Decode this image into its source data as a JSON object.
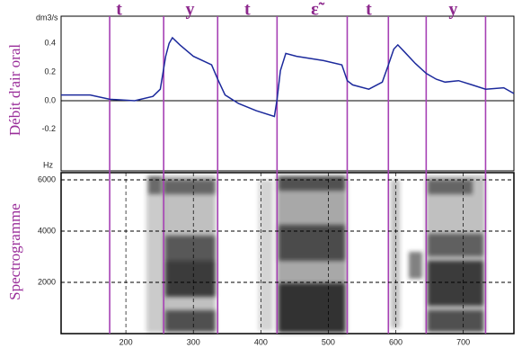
{
  "chart_data": [
    {
      "type": "line",
      "ylabel": "Débit d'air oral",
      "unit": "dm3/s",
      "phonemes": [
        {
          "label": "t",
          "x": 190
        },
        {
          "label": "y",
          "x": 295
        },
        {
          "label": "t",
          "x": 380
        },
        {
          "label": "ɛ̃",
          "x": 480
        },
        {
          "label": "t",
          "x": 560
        },
        {
          "label": "y",
          "x": 685
        }
      ],
      "boundaries": [
        176,
        256,
        336,
        424,
        528,
        589,
        645,
        733
      ],
      "xlim": [
        104,
        775
      ],
      "ylim": [
        -0.49,
        0.59
      ],
      "yticks": [
        0.4,
        0.2,
        {
          "value": 0,
          "label": "0.0"
        },
        -0.2
      ],
      "series": [
        {
          "color": "#1c2a9c",
          "x": [
            104,
            147,
            176,
            213,
            240,
            251,
            259,
            264,
            269,
            280,
            300,
            327,
            336,
            347,
            367,
            393,
            420,
            424,
            429,
            437,
            453,
            493,
            520,
            528,
            536,
            560,
            580,
            589,
            597,
            603,
            613,
            629,
            645,
            660,
            673,
            693,
            713,
            733,
            760,
            775
          ],
          "values": [
            0.04,
            0.04,
            0.01,
            0.0,
            0.03,
            0.08,
            0.31,
            0.4,
            0.44,
            0.39,
            0.31,
            0.25,
            0.15,
            0.04,
            -0.02,
            -0.07,
            -0.11,
            0.01,
            0.21,
            0.33,
            0.31,
            0.28,
            0.25,
            0.14,
            0.11,
            0.08,
            0.13,
            0.25,
            0.36,
            0.39,
            0.34,
            0.26,
            0.19,
            0.15,
            0.13,
            0.14,
            0.11,
            0.08,
            0.09,
            0.05
          ]
        }
      ]
    },
    {
      "type": "spectrogram",
      "ylabel": "Spectrogramme",
      "unit": "Hz",
      "xlim": [
        104,
        775
      ],
      "ylim": [
        0,
        6280
      ],
      "yticks": [
        2000,
        4000,
        6000
      ],
      "xticks": [
        200,
        300,
        400,
        500,
        600,
        700
      ]
    }
  ]
}
